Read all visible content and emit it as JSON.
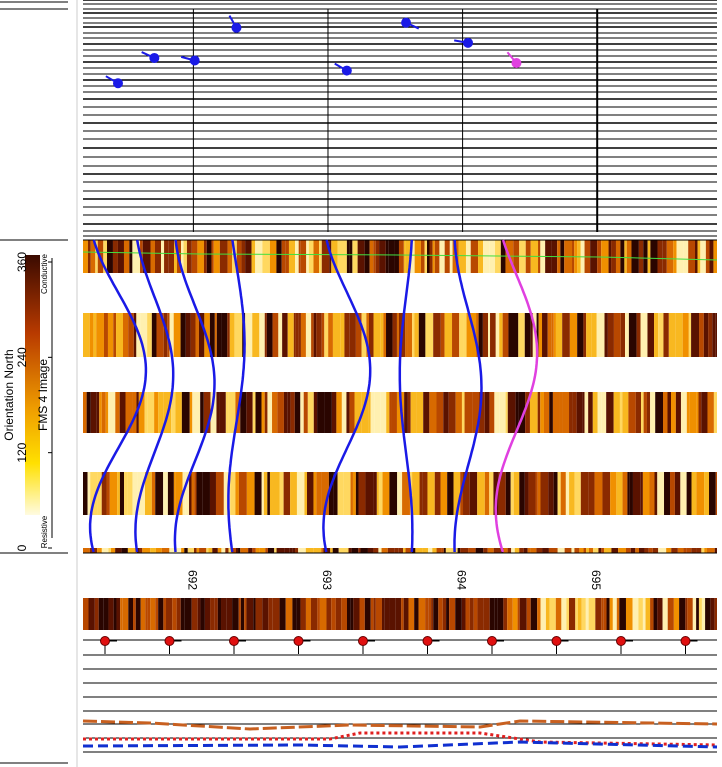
{
  "labels": {
    "orientation": "Orientation North",
    "image": "FMS 4 Image",
    "conductive": "Conductive",
    "resistive": "Resistive"
  },
  "orientation_axis": {
    "ylim": [
      0,
      360
    ],
    "yticks": [
      0,
      120,
      240,
      360
    ]
  },
  "depth_axis": {
    "xlim": [
      691.18,
      695.89
    ],
    "xticks": [
      692,
      693,
      694,
      695
    ]
  },
  "dips": {
    "dip_lim": [
      0,
      90
    ],
    "depth": [
      691.44,
      691.71,
      692.01,
      692.32,
      693.14,
      693.58,
      694.04,
      694.4
    ],
    "dip": [
      31,
      21,
      22,
      9,
      26,
      7,
      15,
      23
    ],
    "azimuth": [
      300,
      295,
      285,
      330,
      300,
      115,
      280,
      320
    ],
    "color": [
      "#1a1ae6",
      "#1a1ae6",
      "#1a1ae6",
      "#1a1ae6",
      "#1a1ae6",
      "#1a1ae6",
      "#1a1ae6",
      "#e040e0"
    ]
  }
}
